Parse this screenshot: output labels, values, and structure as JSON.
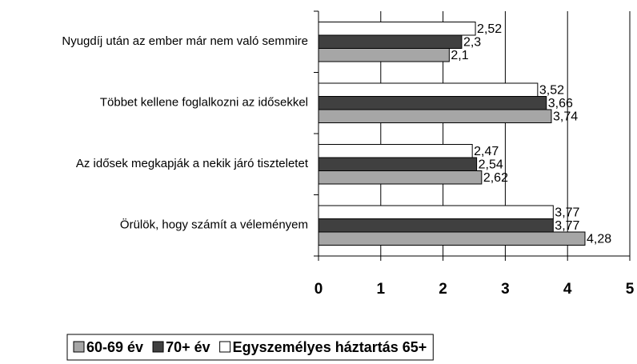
{
  "chart_data": {
    "type": "bar",
    "orientation": "horizontal",
    "categories": [
      "Nyugdíj után az ember már nem való semmire",
      "Többet kellene foglalkozni az idősekkel",
      "Az idősek megkapják a nekik járó tiszteletet",
      "Örülök, hogy számít a véleményem"
    ],
    "series": [
      {
        "name": "60-69 év",
        "color": "#a6a6a6",
        "values": [
          2.1,
          3.74,
          2.62,
          4.28
        ],
        "value_labels": [
          "2,1",
          "3,74",
          "2,62",
          "4,28"
        ]
      },
      {
        "name": "70+ év",
        "color": "#404040",
        "values": [
          2.3,
          3.66,
          2.54,
          3.77
        ],
        "value_labels": [
          "2,3",
          "3,66",
          "2,54",
          "3,77"
        ]
      },
      {
        "name": "Egyszemélyes háztartás 65+",
        "color": "#ffffff",
        "values": [
          2.52,
          3.52,
          2.47,
          3.77
        ],
        "value_labels": [
          "2,52",
          "3,52",
          "2,47",
          "3,77"
        ]
      }
    ],
    "xlim": [
      0,
      5
    ],
    "xticks": [
      0,
      1,
      2,
      3,
      4,
      5
    ],
    "grid": true,
    "legend": "bottom"
  }
}
